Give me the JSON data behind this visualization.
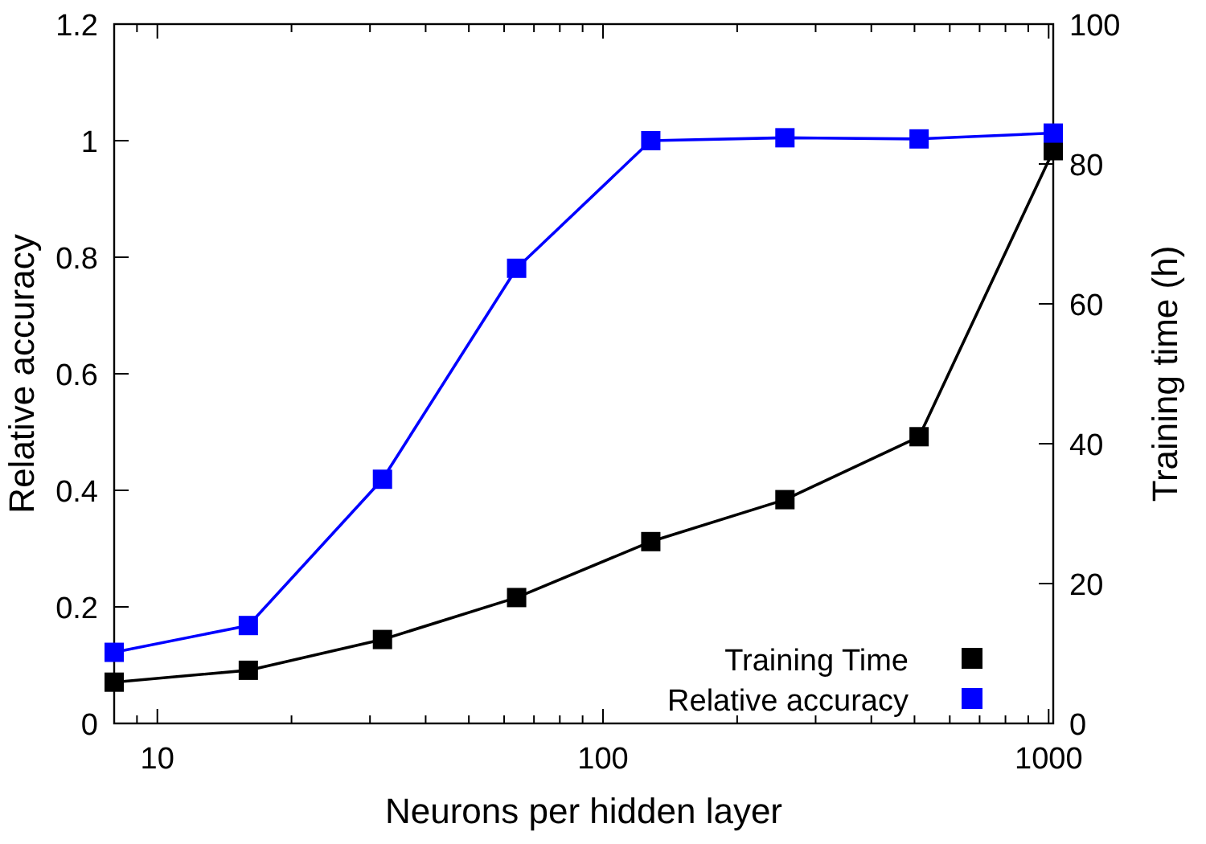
{
  "chart_data": {
    "type": "line",
    "xlabel": "Neurons per hidden layer",
    "ylabel": "Relative accuracy",
    "y2label": "Training time (h)",
    "x": [
      8,
      16,
      32,
      64,
      128,
      256,
      512,
      1024
    ],
    "series": [
      {
        "name": "Training Time",
        "color": "#000000",
        "axis": "y2",
        "values": [
          5.9,
          7.6,
          12.0,
          18.0,
          26.0,
          32.0,
          41.0,
          81.9
        ]
      },
      {
        "name": "Relative accuracy",
        "color": "#0000ff",
        "values": [
          0.122,
          0.168,
          0.419,
          0.781,
          1.0,
          1.005,
          1.003,
          1.013
        ]
      }
    ],
    "log": "x",
    "xlim": [
      8,
      1024
    ],
    "xticks": [
      {
        "value": 9,
        "label": null
      },
      10,
      {
        "value": 20,
        "label": null
      },
      {
        "value": 30,
        "label": null
      },
      {
        "value": 40,
        "label": null
      },
      {
        "value": 50,
        "label": null
      },
      {
        "value": 60,
        "label": null
      },
      {
        "value": 70,
        "label": null
      },
      {
        "value": 80,
        "label": null
      },
      {
        "value": 90,
        "label": null
      },
      100,
      {
        "value": 200,
        "label": null
      },
      {
        "value": 300,
        "label": null
      },
      {
        "value": 400,
        "label": null
      },
      {
        "value": 500,
        "label": null
      },
      {
        "value": 600,
        "label": null
      },
      {
        "value": 700,
        "label": null
      },
      {
        "value": 800,
        "label": null
      },
      {
        "value": 900,
        "label": null
      },
      1000
    ],
    "ylim": [
      0,
      1.2
    ],
    "yticks": [
      0,
      0.2,
      0.4,
      0.6,
      0.8,
      1,
      1.2
    ],
    "y2lim": [
      0,
      100
    ],
    "y2ticks": [
      0,
      20,
      40,
      60,
      80,
      100
    ],
    "grid": false,
    "legend": "bottom right",
    "marker": "square",
    "line_style": "solid"
  }
}
